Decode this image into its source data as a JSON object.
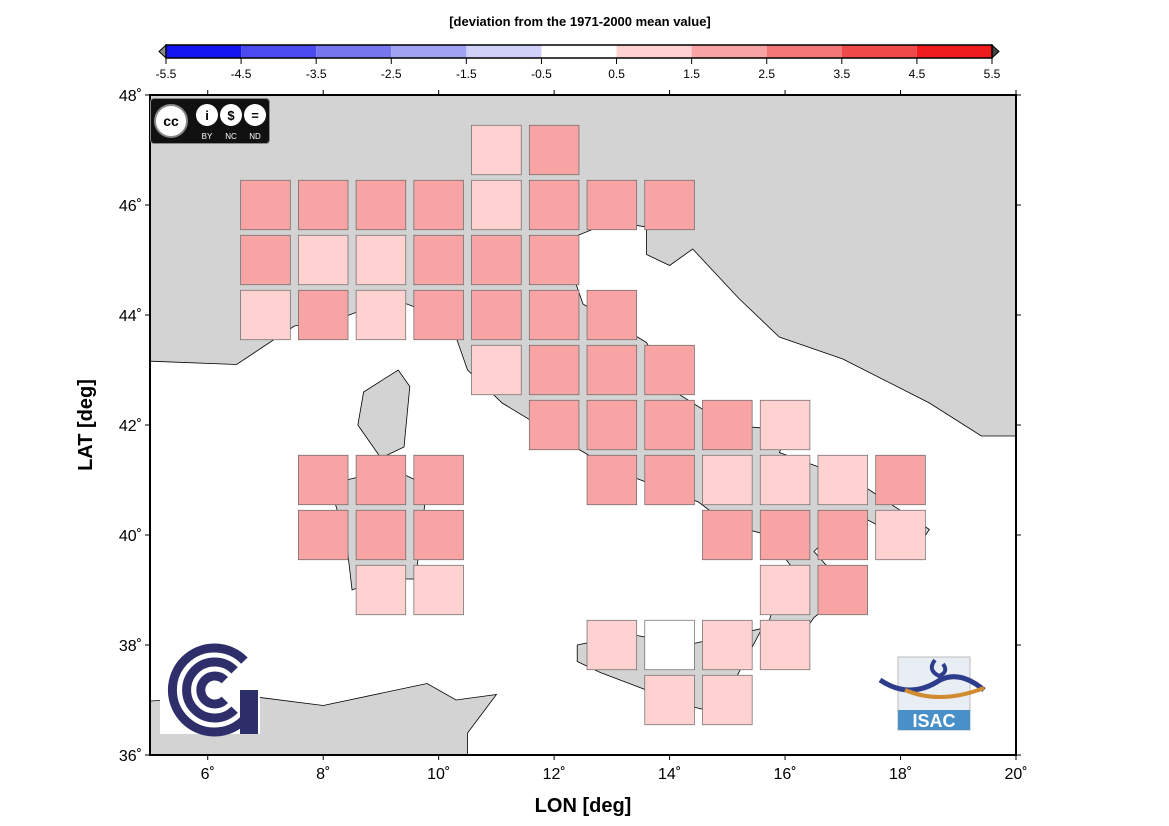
{
  "colorbar": {
    "title": "[deviation from the 1971-2000 mean value]",
    "ticks": [
      "-5.5",
      "-4.5",
      "-3.5",
      "-2.5",
      "-1.5",
      "-0.5",
      "0.5",
      "1.5",
      "2.5",
      "3.5",
      "4.5",
      "5.5"
    ],
    "colors": [
      "#1414ee",
      "#4a4aee",
      "#7676ee",
      "#a2a2f4",
      "#d0d0f8",
      "#ffffff",
      "#ffd2d2",
      "#f8a4a4",
      "#f27878",
      "#ee4a4a",
      "#ee1c1c"
    ]
  },
  "logos": {
    "cc": [
      "BY",
      "NC",
      "ND"
    ],
    "isac": "ISAC"
  },
  "chart_data": {
    "type": "heatmap",
    "xlabel": "LON [deg]",
    "ylabel": "LAT [deg]",
    "xlim": [
      5,
      20
    ],
    "ylim": [
      36,
      48
    ],
    "xticks": [
      "6˚",
      "8˚",
      "10˚",
      "12˚",
      "14˚",
      "16˚",
      "18˚",
      "20˚"
    ],
    "yticks": [
      "36˚",
      "38˚",
      "40˚",
      "42˚",
      "44˚",
      "46˚",
      "48˚"
    ],
    "cell_size_deg": 1,
    "cells": [
      {
        "lon": 11,
        "lat": 47,
        "value": 1
      },
      {
        "lon": 12,
        "lat": 47,
        "value": 2
      },
      {
        "lon": 7,
        "lat": 46,
        "value": 2
      },
      {
        "lon": 8,
        "lat": 46,
        "value": 2
      },
      {
        "lon": 9,
        "lat": 46,
        "value": 2
      },
      {
        "lon": 10,
        "lat": 46,
        "value": 2
      },
      {
        "lon": 11,
        "lat": 46,
        "value": 1
      },
      {
        "lon": 12,
        "lat": 46,
        "value": 2
      },
      {
        "lon": 13,
        "lat": 46,
        "value": 2
      },
      {
        "lon": 14,
        "lat": 46,
        "value": 2
      },
      {
        "lon": 7,
        "lat": 45,
        "value": 2
      },
      {
        "lon": 8,
        "lat": 45,
        "value": 1
      },
      {
        "lon": 9,
        "lat": 45,
        "value": 1
      },
      {
        "lon": 10,
        "lat": 45,
        "value": 2
      },
      {
        "lon": 11,
        "lat": 45,
        "value": 2
      },
      {
        "lon": 12,
        "lat": 45,
        "value": 2
      },
      {
        "lon": 7,
        "lat": 44,
        "value": 1
      },
      {
        "lon": 8,
        "lat": 44,
        "value": 2
      },
      {
        "lon": 9,
        "lat": 44,
        "value": 1
      },
      {
        "lon": 10,
        "lat": 44,
        "value": 2
      },
      {
        "lon": 11,
        "lat": 44,
        "value": 2
      },
      {
        "lon": 12,
        "lat": 44,
        "value": 2
      },
      {
        "lon": 13,
        "lat": 44,
        "value": 2
      },
      {
        "lon": 11,
        "lat": 43,
        "value": 1
      },
      {
        "lon": 12,
        "lat": 43,
        "value": 2
      },
      {
        "lon": 13,
        "lat": 43,
        "value": 2
      },
      {
        "lon": 14,
        "lat": 43,
        "value": 2
      },
      {
        "lon": 12,
        "lat": 42,
        "value": 2
      },
      {
        "lon": 13,
        "lat": 42,
        "value": 2
      },
      {
        "lon": 14,
        "lat": 42,
        "value": 2
      },
      {
        "lon": 15,
        "lat": 42,
        "value": 2
      },
      {
        "lon": 16,
        "lat": 42,
        "value": 1
      },
      {
        "lon": 8,
        "lat": 41,
        "value": 2
      },
      {
        "lon": 9,
        "lat": 41,
        "value": 2
      },
      {
        "lon": 10,
        "lat": 41,
        "value": 2
      },
      {
        "lon": 13,
        "lat": 41,
        "value": 2
      },
      {
        "lon": 14,
        "lat": 41,
        "value": 2
      },
      {
        "lon": 15,
        "lat": 41,
        "value": 1
      },
      {
        "lon": 16,
        "lat": 41,
        "value": 1
      },
      {
        "lon": 17,
        "lat": 41,
        "value": 1
      },
      {
        "lon": 18,
        "lat": 41,
        "value": 2
      },
      {
        "lon": 8,
        "lat": 40,
        "value": 2
      },
      {
        "lon": 9,
        "lat": 40,
        "value": 2
      },
      {
        "lon": 10,
        "lat": 40,
        "value": 2
      },
      {
        "lon": 15,
        "lat": 40,
        "value": 2
      },
      {
        "lon": 16,
        "lat": 40,
        "value": 2
      },
      {
        "lon": 17,
        "lat": 40,
        "value": 2
      },
      {
        "lon": 18,
        "lat": 40,
        "value": 1
      },
      {
        "lon": 9,
        "lat": 39,
        "value": 1
      },
      {
        "lon": 10,
        "lat": 39,
        "value": 1
      },
      {
        "lon": 16,
        "lat": 39,
        "value": 1
      },
      {
        "lon": 17,
        "lat": 39,
        "value": 2
      },
      {
        "lon": 13,
        "lat": 38,
        "value": 1
      },
      {
        "lon": 14,
        "lat": 38,
        "value": 0
      },
      {
        "lon": 15,
        "lat": 38,
        "value": 1
      },
      {
        "lon": 16,
        "lat": 38,
        "value": 1
      },
      {
        "lon": 14,
        "lat": 37,
        "value": 1
      },
      {
        "lon": 15,
        "lat": 37,
        "value": 1
      }
    ]
  }
}
